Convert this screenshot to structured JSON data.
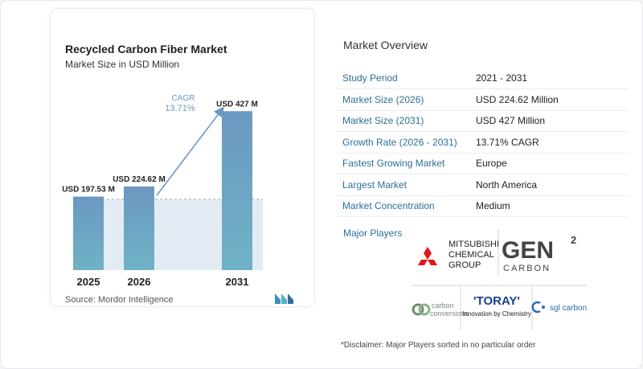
{
  "chart_data": {
    "type": "bar",
    "title": "Recycled Carbon Fiber Market",
    "subtitle": "Market Size in USD Million",
    "categories": [
      "2025",
      "2026",
      "2031"
    ],
    "values": [
      197.53,
      224.62,
      427
    ],
    "value_labels": [
      "USD 197.53 M",
      "USD 224.62 M",
      "USD 427 M"
    ],
    "cagr_label": "CAGR",
    "cagr_value": "13.71%",
    "ylim": [
      0,
      460
    ],
    "colors": {
      "bar_top": "#6b98c2",
      "bar_bottom": "#6fb3c6",
      "band": "#e3ecf4",
      "arrow": "#6b98c2",
      "cagr": "#6b98c2"
    }
  },
  "source": "Source:  Mordor Intelligence",
  "overview": {
    "title": "Market Overview",
    "rows": [
      {
        "key": "Study Period",
        "value": "2021 - 2031"
      },
      {
        "key": "Market Size (2026)",
        "value": "USD 224.62 Million"
      },
      {
        "key": "Market Size (2031)",
        "value": "USD 427 Million"
      },
      {
        "key": "Growth Rate (2026 - 2031)",
        "value": "13.71% CAGR"
      },
      {
        "key": "Fastest Growing Market",
        "value": "Europe"
      },
      {
        "key": "Largest Market",
        "value": "North America"
      },
      {
        "key": "Market Concentration",
        "value": "Medium"
      }
    ],
    "players_label": "Major Players",
    "players": {
      "mitsubishi": [
        "MITSUBISHI",
        "CHEMICAL",
        "GROUP"
      ],
      "gen2": {
        "main": "GEN",
        "sup": "2",
        "sub": "CARBON"
      },
      "carbon_conversions": [
        "carbon",
        "conversions"
      ],
      "toray": {
        "name": "'TORAY'",
        "tagline": "Innovation by Chemistry"
      },
      "sgl": "sgl carbon"
    },
    "disclaimer": "*Disclaimer: Major Players sorted in no particular order"
  }
}
